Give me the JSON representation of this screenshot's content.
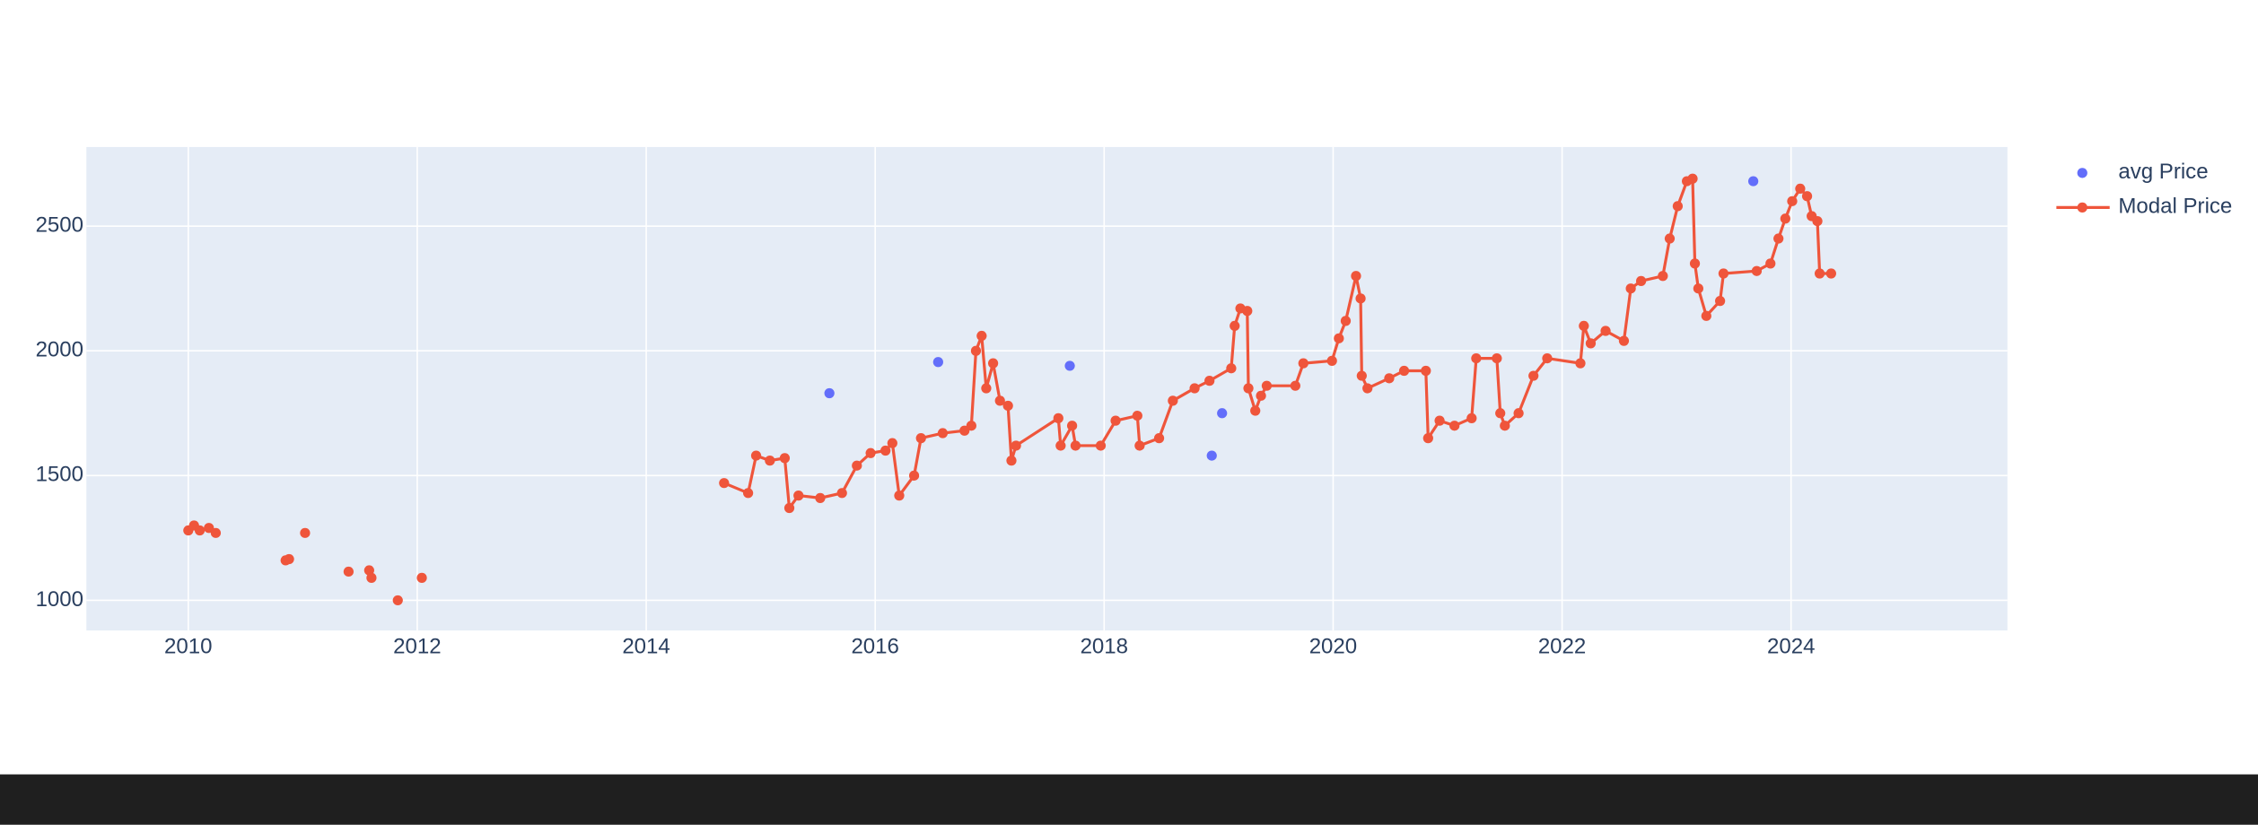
{
  "chart_data": {
    "type": "line",
    "xlim": [
      2009.11,
      2025.89
    ],
    "xticks": [
      2010,
      2012,
      2014,
      2016,
      2018,
      2020,
      2022,
      2024
    ],
    "ylim": [
      879,
      2817
    ],
    "yticks": [
      1000,
      1500,
      2000,
      2500
    ],
    "grid": true,
    "legend": "right",
    "series": [
      {
        "name": "avg Price",
        "color": "#636efa",
        "mode": "markers",
        "x": [
          2015.6,
          2016.55,
          2017.7,
          2018.94,
          2019.03,
          2023.67
        ],
        "values": [
          1830,
          1955,
          1940,
          1580,
          1750,
          2680
        ]
      },
      {
        "name": "Modal Price",
        "color": "#ef553b",
        "mode": "lines+markers",
        "x": [
          2010.0,
          2010.05,
          2010.1,
          2010.18,
          2010.24,
          2010.5,
          2010.85,
          2010.88,
          2010.95,
          2011.02,
          2011.2,
          2011.4,
          2011.5,
          2011.58,
          2011.6,
          2011.7,
          2011.83,
          2011.9,
          2012.04,
          2013.0,
          2014.68,
          2014.89,
          2014.96,
          2015.08,
          2015.21,
          2015.25,
          2015.33,
          2015.52,
          2015.71,
          2015.84,
          2015.96,
          2016.09,
          2016.15,
          2016.21,
          2016.34,
          2016.4,
          2016.59,
          2016.78,
          2016.84,
          2016.88,
          2016.93,
          2016.97,
          2017.03,
          2017.09,
          2017.16,
          2017.19,
          2017.23,
          2017.6,
          2017.62,
          2017.72,
          2017.75,
          2017.97,
          2018.1,
          2018.29,
          2018.31,
          2018.48,
          2018.6,
          2018.79,
          2018.92,
          2019.11,
          2019.14,
          2019.19,
          2019.25,
          2019.26,
          2019.32,
          2019.37,
          2019.42,
          2019.67,
          2019.74,
          2019.99,
          2020.05,
          2020.11,
          2020.2,
          2020.24,
          2020.25,
          2020.3,
          2020.49,
          2020.62,
          2020.81,
          2020.83,
          2020.93,
          2021.06,
          2021.21,
          2021.25,
          2021.43,
          2021.46,
          2021.5,
          2021.62,
          2021.75,
          2021.87,
          2022.16,
          2022.19,
          2022.25,
          2022.38,
          2022.54,
          2022.6,
          2022.69,
          2022.88,
          2022.94,
          2023.01,
          2023.09,
          2023.14,
          2023.16,
          2023.19,
          2023.26,
          2023.38,
          2023.41,
          2023.7,
          2023.82,
          2023.89,
          2023.95,
          2024.01,
          2024.08,
          2024.14,
          2024.18,
          2024.23,
          2024.25,
          2024.35
        ],
        "values": [
          1280,
          1300,
          1280,
          1290,
          1270,
          null,
          1160,
          1165,
          null,
          1270,
          null,
          1115,
          null,
          1120,
          1090,
          null,
          1000,
          null,
          1090,
          null,
          1470,
          1430,
          1580,
          1560,
          1570,
          1370,
          1420,
          1410,
          1430,
          1540,
          1590,
          1600,
          1630,
          1420,
          1500,
          1650,
          1670,
          1680,
          1700,
          2000,
          2060,
          1850,
          1950,
          1800,
          1780,
          1560,
          1620,
          1730,
          1620,
          1700,
          1620,
          1620,
          1720,
          1740,
          1620,
          1650,
          1800,
          1850,
          1880,
          1930,
          2100,
          2170,
          2160,
          1850,
          1760,
          1820,
          1860,
          1860,
          1950,
          1960,
          2050,
          2120,
          2300,
          2210,
          1900,
          1850,
          1890,
          1920,
          1920,
          1650,
          1720,
          1700,
          1730,
          1970,
          1970,
          1750,
          1700,
          1750,
          1900,
          1970,
          1950,
          2100,
          2030,
          2080,
          2040,
          2250,
          2280,
          2300,
          2450,
          2580,
          2680,
          2690,
          2350,
          2250,
          2140,
          2200,
          2310,
          2320,
          2350,
          2450,
          2530,
          2600,
          2650,
          2620,
          2540,
          2520,
          2310,
          2310
        ]
      }
    ]
  }
}
